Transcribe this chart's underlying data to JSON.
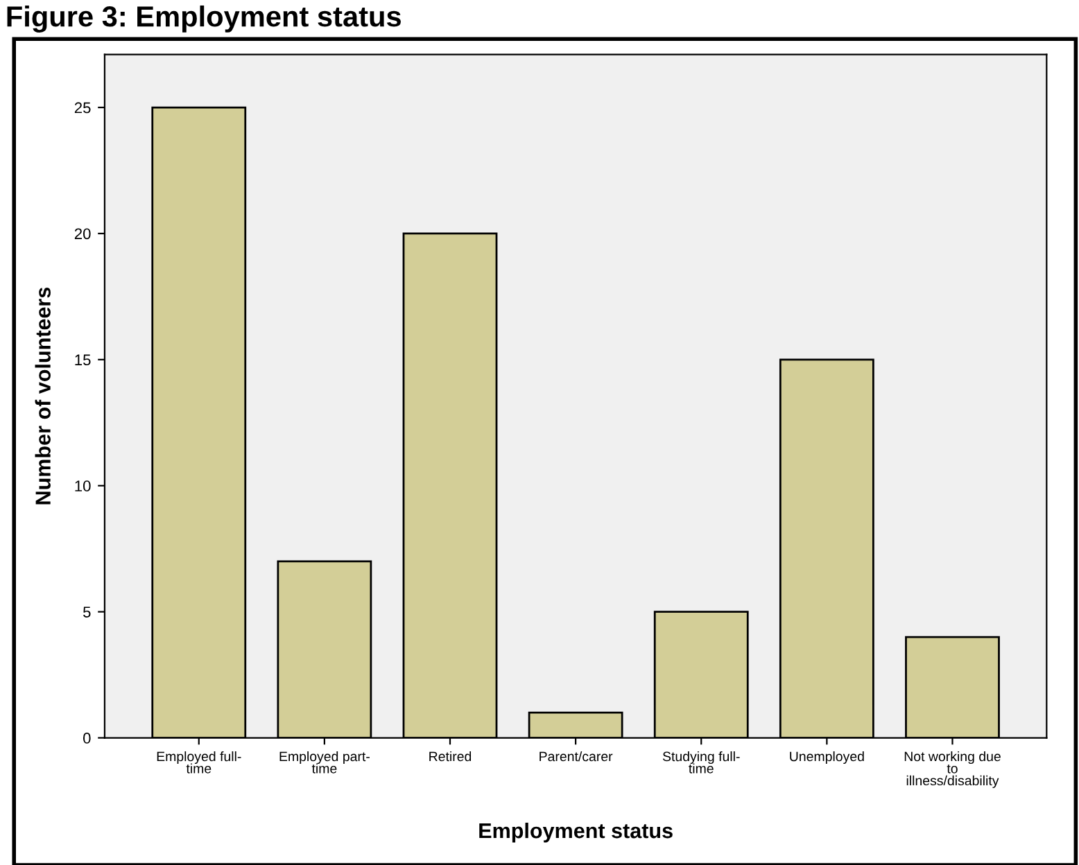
{
  "chart_data": {
    "type": "bar",
    "title": "Figure 3: Employment status",
    "xlabel": "Employment status",
    "ylabel": "Number of volunteers",
    "categories": [
      "Employed full-\ntime",
      "Employed part-\ntime",
      "Retired",
      "Parent/carer",
      "Studying full-\ntime",
      "Unemployed",
      "Not working due\nto\nillness/disability"
    ],
    "values": [
      25,
      7,
      20,
      1,
      5,
      15,
      4
    ],
    "color": "#d3ce97",
    "ylim": [
      0,
      27.1
    ],
    "yticks": [
      0,
      5,
      10,
      15,
      20,
      25
    ],
    "grid": false
  }
}
